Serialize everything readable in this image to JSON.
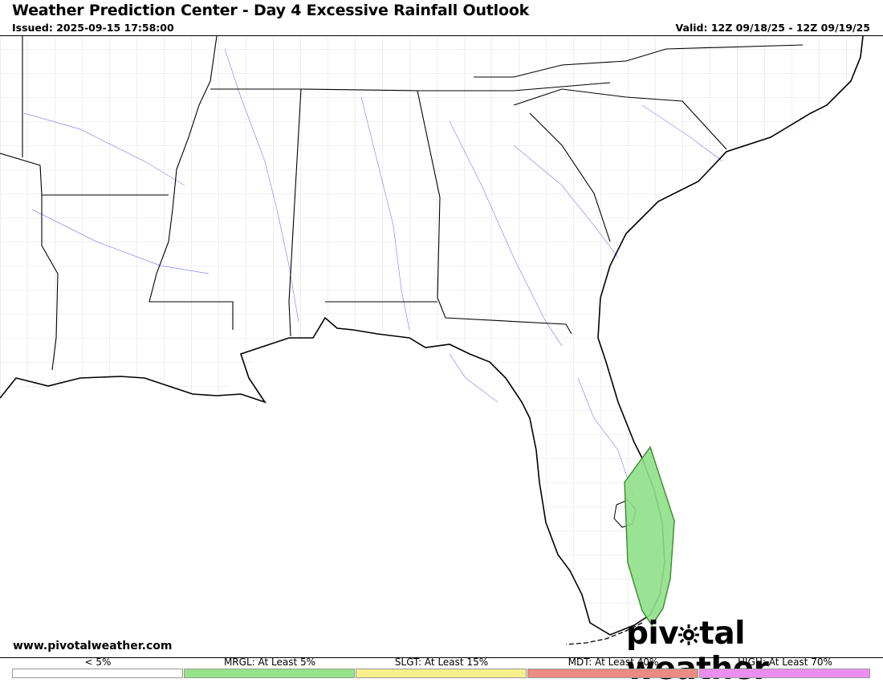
{
  "header": {
    "title": "Weather Prediction Center - Day 4 Excessive Rainfall Outlook",
    "issued": "Issued: 2025-09-15 17:58:00",
    "valid": "Valid: 12Z 09/18/25 - 12Z 09/19/25"
  },
  "footer": {
    "site": "www.pivotalweather.com",
    "logo_part1": "piv",
    "logo_part2": "tal weather"
  },
  "map": {
    "region": "Southeastern United States",
    "outlook_areas": [
      {
        "category": "MRGL",
        "location": "Southeast Florida",
        "color": "#8fe08a"
      }
    ]
  },
  "legend": [
    {
      "label": "< 5%",
      "color": "#ffffff"
    },
    {
      "label": "MRGL: At Least 5%",
      "color": "#95e388"
    },
    {
      "label": "SLGT: At Least 15%",
      "color": "#f7f08c"
    },
    {
      "label": "MDT: At Least 40%",
      "color": "#ec8a83"
    },
    {
      "label": "HIGH: At Least 70%",
      "color": "#ee8df0"
    }
  ]
}
